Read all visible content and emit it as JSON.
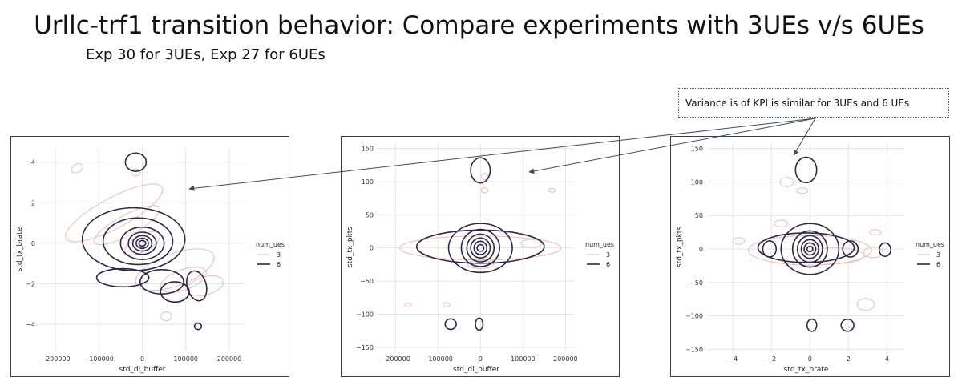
{
  "slide": {
    "title": "Urllc-trf1 transition behavior: Compare experiments with 3UEs v/s 6UEs",
    "subtitle": "Exp 30 for 3UEs, Exp 27 for 6UEs",
    "callout": "Variance is of KPI is similar for 3UEs and 6 UEs"
  },
  "colors": {
    "ues3": "#e8c4bd",
    "ues6": "#2e2746",
    "grid": "#e3e3e3",
    "frame": "#3a3f4a",
    "arrow": "#3f4a5a"
  },
  "chart_data": [
    {
      "type": "kde-contour",
      "xlabel": "std_dl_buffer",
      "ylabel": "std_tx_brate",
      "xlim": [
        -235000,
        235000
      ],
      "ylim": [
        -5.3,
        4.7
      ],
      "xticks": [
        -200000,
        -100000,
        0,
        100000,
        200000
      ],
      "xtick_labels": [
        "−200000",
        "−100000",
        "0",
        "100000",
        "200000"
      ],
      "yticks": [
        -4,
        -2,
        0,
        2,
        4
      ],
      "ytick_labels": [
        "−4",
        "−2",
        "0",
        "2",
        "4"
      ],
      "legend": {
        "title": "num_ues",
        "position": "right",
        "entries": [
          "3",
          "6"
        ]
      },
      "grid": true,
      "contours": [
        {
          "series": "3",
          "cx": -150000,
          "cy": 3.7,
          "rx": 14000,
          "ry": 0.2,
          "rot": 30
        },
        {
          "series": "3",
          "cx": -65000,
          "cy": 1.5,
          "rx": 125000,
          "ry": 0.75,
          "rot": 28
        },
        {
          "series": "3",
          "cx": -35000,
          "cy": 0.9,
          "rx": 85000,
          "ry": 0.5,
          "rot": 28
        },
        {
          "series": "3",
          "cx": 0,
          "cy": 0,
          "rx": 45000,
          "ry": 0.4,
          "rot": 28
        },
        {
          "series": "3",
          "cx": 75000,
          "cy": -1.3,
          "rx": 95000,
          "ry": 0.8,
          "rot": 20
        },
        {
          "series": "3",
          "cx": 95000,
          "cy": -1.8,
          "rx": 55000,
          "ry": 0.5,
          "rot": 20
        },
        {
          "series": "3",
          "cx": 145000,
          "cy": -2.1,
          "rx": 42000,
          "ry": 0.45,
          "rot": 15
        },
        {
          "series": "3",
          "cx": 55000,
          "cy": -3.6,
          "rx": 12000,
          "ry": 0.22,
          "rot": 0
        },
        {
          "series": "3",
          "cx": -15000,
          "cy": 3.5,
          "rx": 10000,
          "ry": 0.18,
          "rot": 0
        },
        {
          "series": "6",
          "cx": -20000,
          "cy": 0.2,
          "rx": 118000,
          "ry": 1.55,
          "rot": 0
        },
        {
          "series": "6",
          "cx": -10000,
          "cy": 0.1,
          "rx": 80000,
          "ry": 1.15,
          "rot": 0
        },
        {
          "series": "6",
          "cx": 0,
          "cy": 0,
          "rx": 50000,
          "ry": 0.8,
          "rot": 0
        },
        {
          "series": "6",
          "cx": 0,
          "cy": 0,
          "rx": 32000,
          "ry": 0.55,
          "rot": 0
        },
        {
          "series": "6",
          "cx": 0,
          "cy": 0,
          "rx": 22000,
          "ry": 0.38,
          "rot": 0
        },
        {
          "series": "6",
          "cx": 0,
          "cy": 0,
          "rx": 14000,
          "ry": 0.25,
          "rot": 0
        },
        {
          "series": "6",
          "cx": 0,
          "cy": 0,
          "rx": 8000,
          "ry": 0.14,
          "rot": 0
        },
        {
          "series": "6",
          "cx": -15000,
          "cy": 4.0,
          "rx": 24000,
          "ry": 0.45,
          "rot": 0
        },
        {
          "series": "6",
          "cx": -45000,
          "cy": -1.7,
          "rx": 60000,
          "ry": 0.45,
          "rot": 0
        },
        {
          "series": "6",
          "cx": 45000,
          "cy": -1.9,
          "rx": 50000,
          "ry": 0.6,
          "rot": 0
        },
        {
          "series": "6",
          "cx": 75000,
          "cy": -2.4,
          "rx": 33000,
          "ry": 0.5,
          "rot": 0
        },
        {
          "series": "6",
          "cx": 125000,
          "cy": -2.1,
          "rx": 22000,
          "ry": 0.75,
          "rot": 15
        },
        {
          "series": "6",
          "cx": 128000,
          "cy": -4.1,
          "rx": 8000,
          "ry": 0.16,
          "rot": 0
        }
      ]
    },
    {
      "type": "kde-contour",
      "xlabel": "std_dl_buffer",
      "ylabel": "std_tx_pkts",
      "xlim": [
        -240000,
        220000
      ],
      "ylim": [
        -155,
        158
      ],
      "xticks": [
        -200000,
        -100000,
        0,
        100000,
        200000
      ],
      "xtick_labels": [
        "−200000",
        "−100000",
        "0",
        "100000",
        "200000"
      ],
      "yticks": [
        -150,
        -100,
        -50,
        0,
        50,
        100,
        150
      ],
      "ytick_labels": [
        "−150",
        "−100",
        "−50",
        "0",
        "50",
        "100",
        "150"
      ],
      "legend": {
        "title": "num_ues",
        "position": "right",
        "entries": [
          "3",
          "6"
        ]
      },
      "grid": true,
      "contours": [
        {
          "series": "3",
          "cx": 0,
          "cy": 0,
          "rx": 190000,
          "ry": 18,
          "rot": 0
        },
        {
          "series": "3",
          "cx": 120000,
          "cy": 7,
          "rx": 25000,
          "ry": 6,
          "rot": 0
        },
        {
          "series": "3",
          "cx": 10000,
          "cy": 108,
          "rx": 8000,
          "ry": 5,
          "rot": 0
        },
        {
          "series": "3",
          "cx": 10000,
          "cy": 87,
          "rx": 8000,
          "ry": 4,
          "rot": 0
        },
        {
          "series": "3",
          "cx": 168000,
          "cy": 87,
          "rx": 8000,
          "ry": 3,
          "rot": 0
        },
        {
          "series": "3",
          "cx": -170000,
          "cy": -86,
          "rx": 8000,
          "ry": 3,
          "rot": 0
        },
        {
          "series": "3",
          "cx": -80000,
          "cy": -86,
          "rx": 8000,
          "ry": 3,
          "rot": 0
        },
        {
          "series": "3",
          "cx": 0,
          "cy": -25,
          "rx": 30000,
          "ry": 6,
          "rot": 0
        },
        {
          "series": "6",
          "cx": 0,
          "cy": 2,
          "rx": 150000,
          "ry": 25,
          "rot": 0
        },
        {
          "series": "6",
          "cx": 0,
          "cy": 0,
          "rx": 75000,
          "ry": 37,
          "rot": 0
        },
        {
          "series": "6",
          "cx": 0,
          "cy": 0,
          "rx": 45000,
          "ry": 28,
          "rot": 0
        },
        {
          "series": "6",
          "cx": 0,
          "cy": 0,
          "rx": 32000,
          "ry": 21,
          "rot": 0
        },
        {
          "series": "6",
          "cx": 0,
          "cy": 0,
          "rx": 23000,
          "ry": 15,
          "rot": 0
        },
        {
          "series": "6",
          "cx": 0,
          "cy": 0,
          "rx": 15000,
          "ry": 10,
          "rot": 0
        },
        {
          "series": "6",
          "cx": 0,
          "cy": 0,
          "rx": 8000,
          "ry": 5,
          "rot": 0
        },
        {
          "series": "6",
          "cx": 0,
          "cy": 117,
          "rx": 23000,
          "ry": 19,
          "rot": 0
        },
        {
          "series": "6",
          "cx": -70000,
          "cy": -115,
          "rx": 13000,
          "ry": 8,
          "rot": 0
        },
        {
          "series": "6",
          "cx": -3000,
          "cy": -115,
          "rx": 9000,
          "ry": 9,
          "rot": 0
        }
      ]
    },
    {
      "type": "kde-contour",
      "xlabel": "std_tx_brate",
      "ylabel": "std_tx_pkts",
      "xlim": [
        -5.3,
        4.9
      ],
      "ylim": [
        -152,
        158
      ],
      "xticks": [
        -4,
        -2,
        0,
        2,
        4
      ],
      "xtick_labels": [
        "−4",
        "−2",
        "0",
        "2",
        "4"
      ],
      "yticks": [
        -150,
        -100,
        -50,
        0,
        50,
        100,
        150
      ],
      "ytick_labels": [
        "−150",
        "−100",
        "−50",
        "0",
        "50",
        "100",
        "150"
      ],
      "legend": {
        "title": "num_ues",
        "position": "right",
        "entries": [
          "3",
          "6"
        ]
      },
      "grid": true,
      "contours": [
        {
          "series": "3",
          "cx": 0,
          "cy": -2,
          "rx": 3.2,
          "ry": 22,
          "rot": 0
        },
        {
          "series": "3",
          "cx": 1.3,
          "cy": -10,
          "rx": 1.5,
          "ry": 12,
          "rot": 0
        },
        {
          "series": "3",
          "cx": 3.3,
          "cy": -5,
          "rx": 0.5,
          "ry": 8,
          "rot": 0
        },
        {
          "series": "3",
          "cx": -1.5,
          "cy": 38,
          "rx": 0.35,
          "ry": 5,
          "rot": 0
        },
        {
          "series": "3",
          "cx": -3.7,
          "cy": 12,
          "rx": 0.3,
          "ry": 5,
          "rot": 0
        },
        {
          "series": "3",
          "cx": -1.2,
          "cy": 100,
          "rx": 0.35,
          "ry": 7,
          "rot": 0
        },
        {
          "series": "3",
          "cx": -0.4,
          "cy": 87,
          "rx": 0.3,
          "ry": 4,
          "rot": 0
        },
        {
          "series": "3",
          "cx": 2.9,
          "cy": -83,
          "rx": 0.45,
          "ry": 9,
          "rot": 0
        },
        {
          "series": "3",
          "cx": 3.4,
          "cy": 25,
          "rx": 0.3,
          "ry": 4,
          "rot": 0
        },
        {
          "series": "6",
          "cx": -0.2,
          "cy": 2,
          "rx": 2.5,
          "ry": 22,
          "rot": 0
        },
        {
          "series": "6",
          "cx": 0,
          "cy": 0,
          "rx": 1.5,
          "ry": 38,
          "rot": 0
        },
        {
          "series": "6",
          "cx": 0,
          "cy": 0,
          "rx": 0.9,
          "ry": 27,
          "rot": 0
        },
        {
          "series": "6",
          "cx": 0,
          "cy": 0,
          "rx": 0.65,
          "ry": 20,
          "rot": 0
        },
        {
          "series": "6",
          "cx": 0,
          "cy": 0,
          "rx": 0.45,
          "ry": 14,
          "rot": 0
        },
        {
          "series": "6",
          "cx": 0,
          "cy": 0,
          "rx": 0.3,
          "ry": 9,
          "rot": 0
        },
        {
          "series": "6",
          "cx": 0,
          "cy": 0,
          "rx": 0.15,
          "ry": 4,
          "rot": 0
        },
        {
          "series": "6",
          "cx": -2.1,
          "cy": 0,
          "rx": 0.35,
          "ry": 12,
          "rot": 0
        },
        {
          "series": "6",
          "cx": 2.1,
          "cy": 0,
          "rx": 0.4,
          "ry": 12,
          "rot": 0
        },
        {
          "series": "6",
          "cx": 3.9,
          "cy": -1,
          "rx": 0.3,
          "ry": 10,
          "rot": 0
        },
        {
          "series": "6",
          "cx": -0.2,
          "cy": 118,
          "rx": 0.55,
          "ry": 19,
          "rot": 0
        },
        {
          "series": "6",
          "cx": 0.1,
          "cy": -114,
          "rx": 0.25,
          "ry": 9,
          "rot": 0
        },
        {
          "series": "6",
          "cx": 1.95,
          "cy": -114,
          "rx": 0.33,
          "ry": 9,
          "rot": 0
        }
      ]
    }
  ]
}
